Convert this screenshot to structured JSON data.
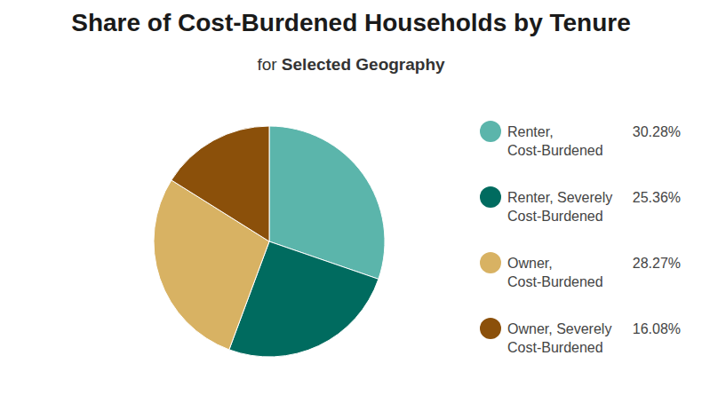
{
  "chart_data": {
    "type": "pie",
    "title": "Share of Cost-Burdened Households by Tenure",
    "subtitle": [
      "for",
      "Selected Geography"
    ],
    "categories": [
      "Renter, Cost-Burdened",
      "Renter, Severely Cost-Burdened",
      "Owner, Cost-Burdened",
      "Owner, Severely Cost-Burdened"
    ],
    "values": [
      30.28,
      25.36,
      28.27,
      16.08
    ],
    "value_labels": [
      "30.28%",
      "25.36%",
      "28.27%",
      "16.08%"
    ],
    "colors": [
      "#5bb5ab",
      "#006b5f",
      "#d8b263",
      "#8b500a"
    ],
    "legend": "right"
  }
}
